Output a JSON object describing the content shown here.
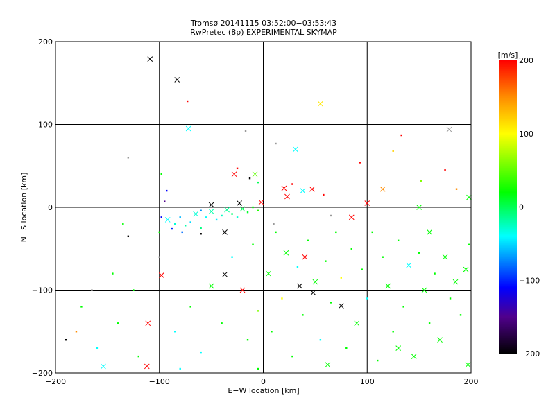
{
  "chart_data": {
    "type": "scatter",
    "title": "Tromsø 20141115 03:52:00−03:53:43",
    "subtitle": "RwPretec (8p) EXPERIMENTAL SKYMAP",
    "xlabel": "E−W location [km]",
    "ylabel": "N−S location [km]",
    "xlim": [
      -200,
      200
    ],
    "ylim": [
      -200,
      200
    ],
    "xticks": [
      -200,
      -100,
      0,
      100,
      200
    ],
    "yticks": [
      -200,
      -100,
      0,
      100,
      200
    ],
    "xtick_labels": [
      "−200",
      "−100",
      "0",
      "100",
      "200"
    ],
    "ytick_labels": [
      "−200",
      "−100",
      "0",
      "100",
      "200"
    ],
    "grid": true,
    "colorbar": {
      "label": "[m/s]",
      "range": [
        -200,
        200
      ],
      "ticks": [
        -200,
        -100,
        0,
        100,
        200
      ],
      "tick_labels": [
        "−200",
        "−100",
        "0",
        "100",
        "200"
      ],
      "colormap": [
        {
          "value": -200,
          "color": "#000000"
        },
        {
          "value": -150,
          "color": "#50008c"
        },
        {
          "value": -110,
          "color": "#0000ff"
        },
        {
          "value": -40,
          "color": "#00ffff"
        },
        {
          "value": 20,
          "color": "#00ff00"
        },
        {
          "value": 100,
          "color": "#ffff00"
        },
        {
          "value": 150,
          "color": "#ff8c00"
        },
        {
          "value": 200,
          "color": "#ff0000"
        }
      ],
      "invalid_color": "#999999"
    },
    "point_format": [
      "x_km",
      "y_km",
      "velocity_m_s (null = gray)",
      "marker"
    ],
    "points": [
      [
        -109,
        179,
        -200,
        "x"
      ],
      [
        -83,
        154,
        -200,
        "x"
      ],
      [
        -73,
        128,
        200,
        "."
      ],
      [
        55,
        125,
        110,
        "x"
      ],
      [
        -72,
        95,
        -40,
        "x"
      ],
      [
        179,
        94,
        null,
        "x"
      ],
      [
        31,
        70,
        -40,
        "x"
      ],
      [
        -17,
        92,
        null,
        "."
      ],
      [
        12,
        77,
        null,
        "."
      ],
      [
        133,
        87,
        200,
        "."
      ],
      [
        125,
        68,
        120,
        "."
      ],
      [
        93,
        54,
        200,
        "."
      ],
      [
        -130,
        60,
        null,
        "."
      ],
      [
        -98,
        40,
        20,
        "."
      ],
      [
        -93,
        20,
        -110,
        "."
      ],
      [
        -95,
        7,
        -150,
        "."
      ],
      [
        -28,
        40,
        200,
        "x"
      ],
      [
        -25,
        47,
        200,
        "."
      ],
      [
        -8,
        40,
        50,
        "x"
      ],
      [
        -5,
        30,
        0,
        "."
      ],
      [
        -13,
        35,
        -200,
        "."
      ],
      [
        20,
        23,
        200,
        "x"
      ],
      [
        23,
        13,
        200,
        "x"
      ],
      [
        28,
        28,
        200,
        "."
      ],
      [
        38,
        20,
        -40,
        "x"
      ],
      [
        47,
        22,
        200,
        "x"
      ],
      [
        58,
        15,
        200,
        "."
      ],
      [
        100,
        5,
        200,
        "x"
      ],
      [
        115,
        22,
        150,
        "x"
      ],
      [
        150,
        0,
        20,
        "x"
      ],
      [
        152,
        32,
        60,
        "."
      ],
      [
        175,
        45,
        200,
        "."
      ],
      [
        186,
        22,
        150,
        "."
      ],
      [
        198,
        12,
        20,
        "x"
      ],
      [
        -92,
        -15,
        -40,
        "x"
      ],
      [
        -85,
        -20,
        -30,
        "."
      ],
      [
        -80,
        -12,
        -60,
        "."
      ],
      [
        -75,
        -22,
        -20,
        "."
      ],
      [
        -70,
        -18,
        -50,
        "."
      ],
      [
        -65,
        -8,
        -30,
        "x"
      ],
      [
        -60,
        -25,
        -10,
        "."
      ],
      [
        -55,
        -12,
        -40,
        "."
      ],
      [
        -50,
        -5,
        -20,
        "x"
      ],
      [
        -45,
        -15,
        -45,
        "."
      ],
      [
        -40,
        -10,
        -25,
        "."
      ],
      [
        -35,
        -3,
        -15,
        "x"
      ],
      [
        -30,
        -8,
        -5,
        "."
      ],
      [
        -25,
        -12,
        -30,
        "."
      ],
      [
        -20,
        -2,
        0,
        "x"
      ],
      [
        -15,
        -6,
        10,
        "."
      ],
      [
        -10,
        0,
        20,
        "."
      ],
      [
        -5,
        -4,
        30,
        "."
      ],
      [
        -88,
        -26,
        -100,
        "."
      ],
      [
        -98,
        -12,
        -110,
        "."
      ],
      [
        -78,
        -30,
        -80,
        "."
      ],
      [
        -60,
        -4,
        -70,
        "."
      ],
      [
        -50,
        3,
        -200,
        "x"
      ],
      [
        -23,
        5,
        -200,
        "x"
      ],
      [
        -2,
        6,
        200,
        "x"
      ],
      [
        -60,
        -32,
        -200,
        "."
      ],
      [
        -37,
        -30,
        -200,
        "x"
      ],
      [
        -130,
        -35,
        -200,
        "."
      ],
      [
        -135,
        -20,
        20,
        "."
      ],
      [
        -100,
        -30,
        20,
        "."
      ],
      [
        -98,
        -82,
        200,
        "x"
      ],
      [
        -111,
        -140,
        200,
        "x"
      ],
      [
        -112,
        -192,
        200,
        "x"
      ],
      [
        -154,
        -192,
        -40,
        "x"
      ],
      [
        -37,
        -81,
        -200,
        "x"
      ],
      [
        75,
        -119,
        -200,
        "x"
      ],
      [
        35,
        -95,
        -200,
        "x"
      ],
      [
        48,
        -103,
        -200,
        "x"
      ],
      [
        85,
        -12,
        200,
        "x"
      ],
      [
        40,
        -60,
        200,
        "x"
      ],
      [
        -180,
        -150,
        150,
        "."
      ],
      [
        -190,
        -160,
        -200,
        "."
      ],
      [
        -175,
        -120,
        20,
        "."
      ],
      [
        -160,
        -170,
        -40,
        "."
      ],
      [
        -140,
        -140,
        20,
        "."
      ],
      [
        -125,
        -100,
        20,
        "."
      ],
      [
        -120,
        -180,
        20,
        "."
      ],
      [
        -85,
        -150,
        -40,
        "."
      ],
      [
        -70,
        -120,
        20,
        "."
      ],
      [
        -60,
        -175,
        -40,
        "."
      ],
      [
        -50,
        -95,
        20,
        "x"
      ],
      [
        -40,
        -140,
        20,
        "."
      ],
      [
        -30,
        -60,
        -40,
        "."
      ],
      [
        -20,
        -100,
        200,
        "x"
      ],
      [
        -15,
        -160,
        20,
        "."
      ],
      [
        -10,
        -45,
        20,
        "."
      ],
      [
        -5,
        -125,
        60,
        "."
      ],
      [
        5,
        -80,
        20,
        "x"
      ],
      [
        8,
        -150,
        20,
        "."
      ],
      [
        12,
        -30,
        20,
        "."
      ],
      [
        18,
        -110,
        100,
        "."
      ],
      [
        22,
        -55,
        20,
        "x"
      ],
      [
        28,
        -180,
        20,
        "."
      ],
      [
        33,
        -72,
        -40,
        "."
      ],
      [
        38,
        -130,
        20,
        "."
      ],
      [
        43,
        -40,
        20,
        "."
      ],
      [
        50,
        -90,
        20,
        "x"
      ],
      [
        55,
        -160,
        -40,
        "."
      ],
      [
        60,
        -65,
        20,
        "."
      ],
      [
        65,
        -115,
        20,
        "."
      ],
      [
        70,
        -30,
        20,
        "."
      ],
      [
        75,
        -85,
        100,
        "."
      ],
      [
        80,
        -170,
        20,
        "."
      ],
      [
        85,
        -50,
        20,
        "."
      ],
      [
        90,
        -140,
        20,
        "x"
      ],
      [
        95,
        -75,
        20,
        "."
      ],
      [
        100,
        -110,
        -40,
        "."
      ],
      [
        105,
        -30,
        20,
        "."
      ],
      [
        110,
        -185,
        20,
        "."
      ],
      [
        115,
        -60,
        20,
        "."
      ],
      [
        120,
        -95,
        20,
        "x"
      ],
      [
        125,
        -150,
        20,
        "."
      ],
      [
        130,
        -40,
        20,
        "."
      ],
      [
        135,
        -120,
        20,
        "."
      ],
      [
        140,
        -70,
        -40,
        "x"
      ],
      [
        145,
        -180,
        20,
        "x"
      ],
      [
        150,
        -55,
        20,
        "."
      ],
      [
        155,
        -100,
        20,
        "x"
      ],
      [
        160,
        -140,
        20,
        "."
      ],
      [
        165,
        -80,
        20,
        "."
      ],
      [
        170,
        -160,
        20,
        "x"
      ],
      [
        175,
        -60,
        20,
        "x"
      ],
      [
        180,
        -110,
        20,
        "."
      ],
      [
        185,
        -90,
        20,
        "x"
      ],
      [
        190,
        -130,
        20,
        "."
      ],
      [
        195,
        -75,
        20,
        "x"
      ],
      [
        197,
        -190,
        20,
        "x"
      ],
      [
        198,
        -45,
        20,
        "."
      ],
      [
        62,
        -190,
        20,
        "x"
      ],
      [
        130,
        -170,
        20,
        "x"
      ],
      [
        160,
        -30,
        20,
        "x"
      ],
      [
        -5,
        -195,
        20,
        "."
      ],
      [
        -80,
        -195,
        -40,
        "."
      ],
      [
        -145,
        -80,
        20,
        "."
      ],
      [
        -165,
        -100,
        null,
        "."
      ],
      [
        10,
        -20,
        null,
        "."
      ],
      [
        65,
        -10,
        null,
        "."
      ],
      [
        -100,
        -60,
        null,
        "."
      ]
    ]
  }
}
